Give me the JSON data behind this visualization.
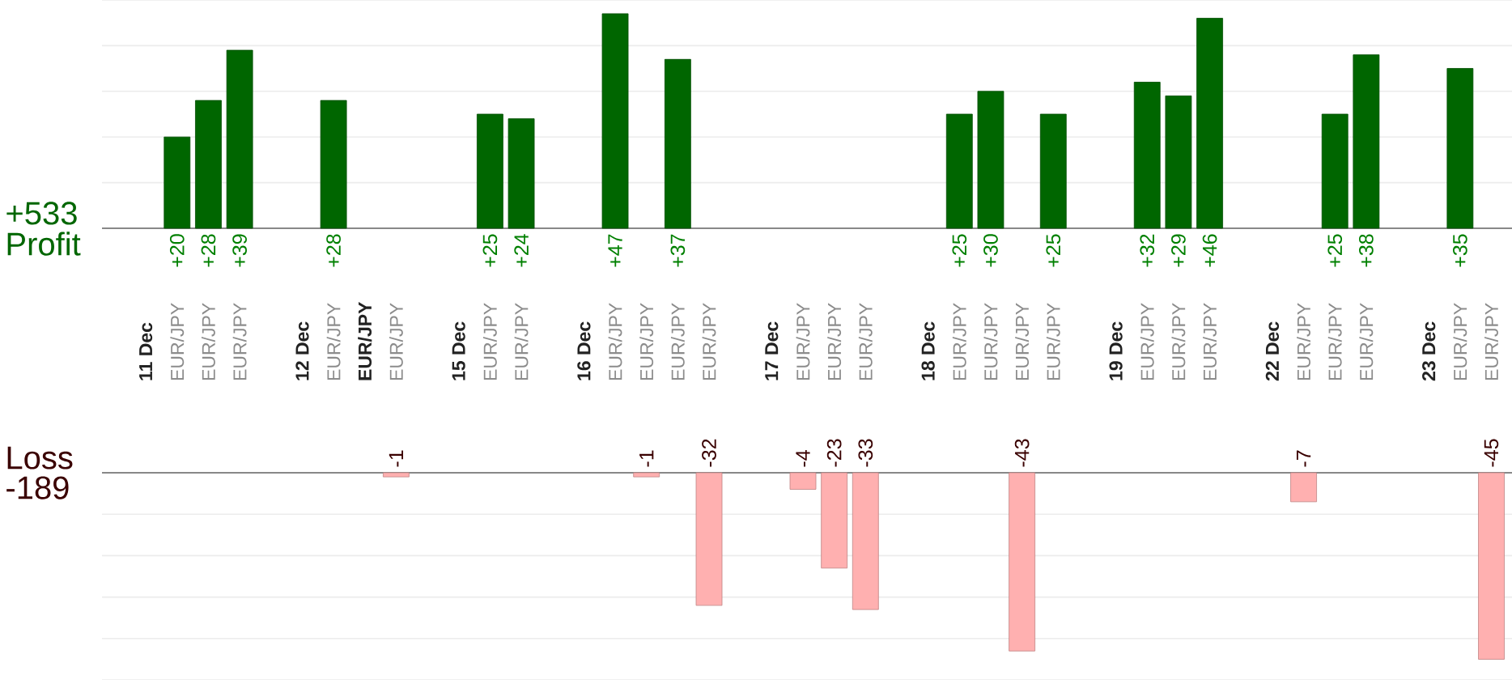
{
  "chart_data": [
    {
      "type": "bar",
      "categories": [
        "11 Dec",
        "EUR/JPY",
        "EUR/JPY",
        "EUR/JPY",
        null,
        "12 Dec",
        "EUR/JPY",
        "EUR/JPY",
        "EUR/JPY",
        null,
        "15 Dec",
        "EUR/JPY",
        "EUR/JPY",
        null,
        "16 Dec",
        "EUR/JPY",
        "EUR/JPY",
        "EUR/JPY",
        "EUR/JPY",
        null,
        "17 Dec",
        "EUR/JPY",
        "EUR/JPY",
        "EUR/JPY",
        null,
        "18 Dec",
        "EUR/JPY",
        "EUR/JPY",
        "EUR/JPY",
        "EUR/JPY",
        null,
        "19 Dec",
        "EUR/JPY",
        "EUR/JPY",
        "EUR/JPY",
        null,
        "22 Dec",
        "EUR/JPY",
        "EUR/JPY",
        "EUR/JPY",
        null,
        "23 Dec",
        "EUR/JPY",
        "EUR/JPY"
      ],
      "values": [
        null,
        20,
        28,
        39,
        null,
        null,
        28,
        null,
        null,
        null,
        null,
        25,
        24,
        null,
        null,
        47,
        null,
        37,
        null,
        null,
        null,
        null,
        null,
        null,
        null,
        null,
        25,
        30,
        null,
        25,
        null,
        null,
        32,
        29,
        46,
        null,
        null,
        null,
        25,
        38,
        null,
        null,
        35,
        null
      ],
      "value_labels": [
        null,
        "+20",
        "+28",
        "+39",
        null,
        null,
        "+28",
        null,
        null,
        null,
        null,
        "+25",
        "+24",
        null,
        null,
        "+47",
        null,
        "+37",
        null,
        null,
        null,
        null,
        null,
        null,
        null,
        null,
        "+25",
        "+30",
        null,
        "+25",
        null,
        null,
        "+32",
        "+29",
        "+46",
        null,
        null,
        null,
        "+25",
        "+38",
        null,
        null,
        "+35",
        null
      ],
      "color": "#006600",
      "ylim": [
        0,
        50
      ],
      "yticks": [
        {
          "value": 0,
          "label": null
        },
        {
          "value": 10,
          "label": null
        },
        {
          "value": 20,
          "label": null
        },
        {
          "value": 30,
          "label": null
        },
        {
          "value": 40,
          "label": null
        },
        {
          "value": 50,
          "label": null
        }
      ],
      "grid": "y",
      "tick_labels": "x",
      "annotations": [
        "+533",
        "Profit"
      ]
    },
    {
      "type": "bar",
      "categories": [
        null,
        null,
        null,
        null,
        null,
        null,
        null,
        null,
        null,
        null,
        null,
        null,
        null,
        null,
        null,
        null,
        null,
        null,
        null,
        null,
        null,
        null,
        null,
        null,
        null,
        null,
        null,
        null,
        null,
        null,
        null,
        null,
        null,
        null,
        null,
        null,
        null,
        null,
        null,
        null,
        null,
        null,
        null,
        null
      ],
      "values": [
        null,
        null,
        null,
        null,
        null,
        null,
        null,
        null,
        -1,
        null,
        null,
        null,
        null,
        null,
        null,
        null,
        -1,
        null,
        -32,
        null,
        null,
        -4,
        -23,
        -33,
        null,
        null,
        null,
        null,
        -43,
        null,
        null,
        null,
        null,
        null,
        null,
        null,
        null,
        -7,
        null,
        null,
        null,
        null,
        null,
        -45
      ],
      "value_labels": [
        null,
        null,
        null,
        null,
        null,
        null,
        null,
        null,
        "-1",
        null,
        null,
        null,
        null,
        null,
        null,
        null,
        "-1",
        null,
        "-32",
        null,
        null,
        "-4",
        "-23",
        "-33",
        null,
        null,
        null,
        null,
        "-43",
        null,
        null,
        null,
        null,
        null,
        null,
        null,
        null,
        "-7",
        null,
        null,
        null,
        null,
        null,
        "-45"
      ],
      "color": "#ffb0b0",
      "ylim": [
        -50,
        0
      ],
      "yticks": [
        {
          "value": -50,
          "label": null
        },
        {
          "value": -40,
          "label": null
        },
        {
          "value": -30,
          "label": null
        },
        {
          "value": -20,
          "label": null
        },
        {
          "value": -10,
          "label": null
        },
        {
          "value": 0,
          "label": null
        }
      ],
      "grid": "y",
      "tick_labels": false,
      "annotations": [
        "Loss",
        "-189"
      ]
    }
  ]
}
